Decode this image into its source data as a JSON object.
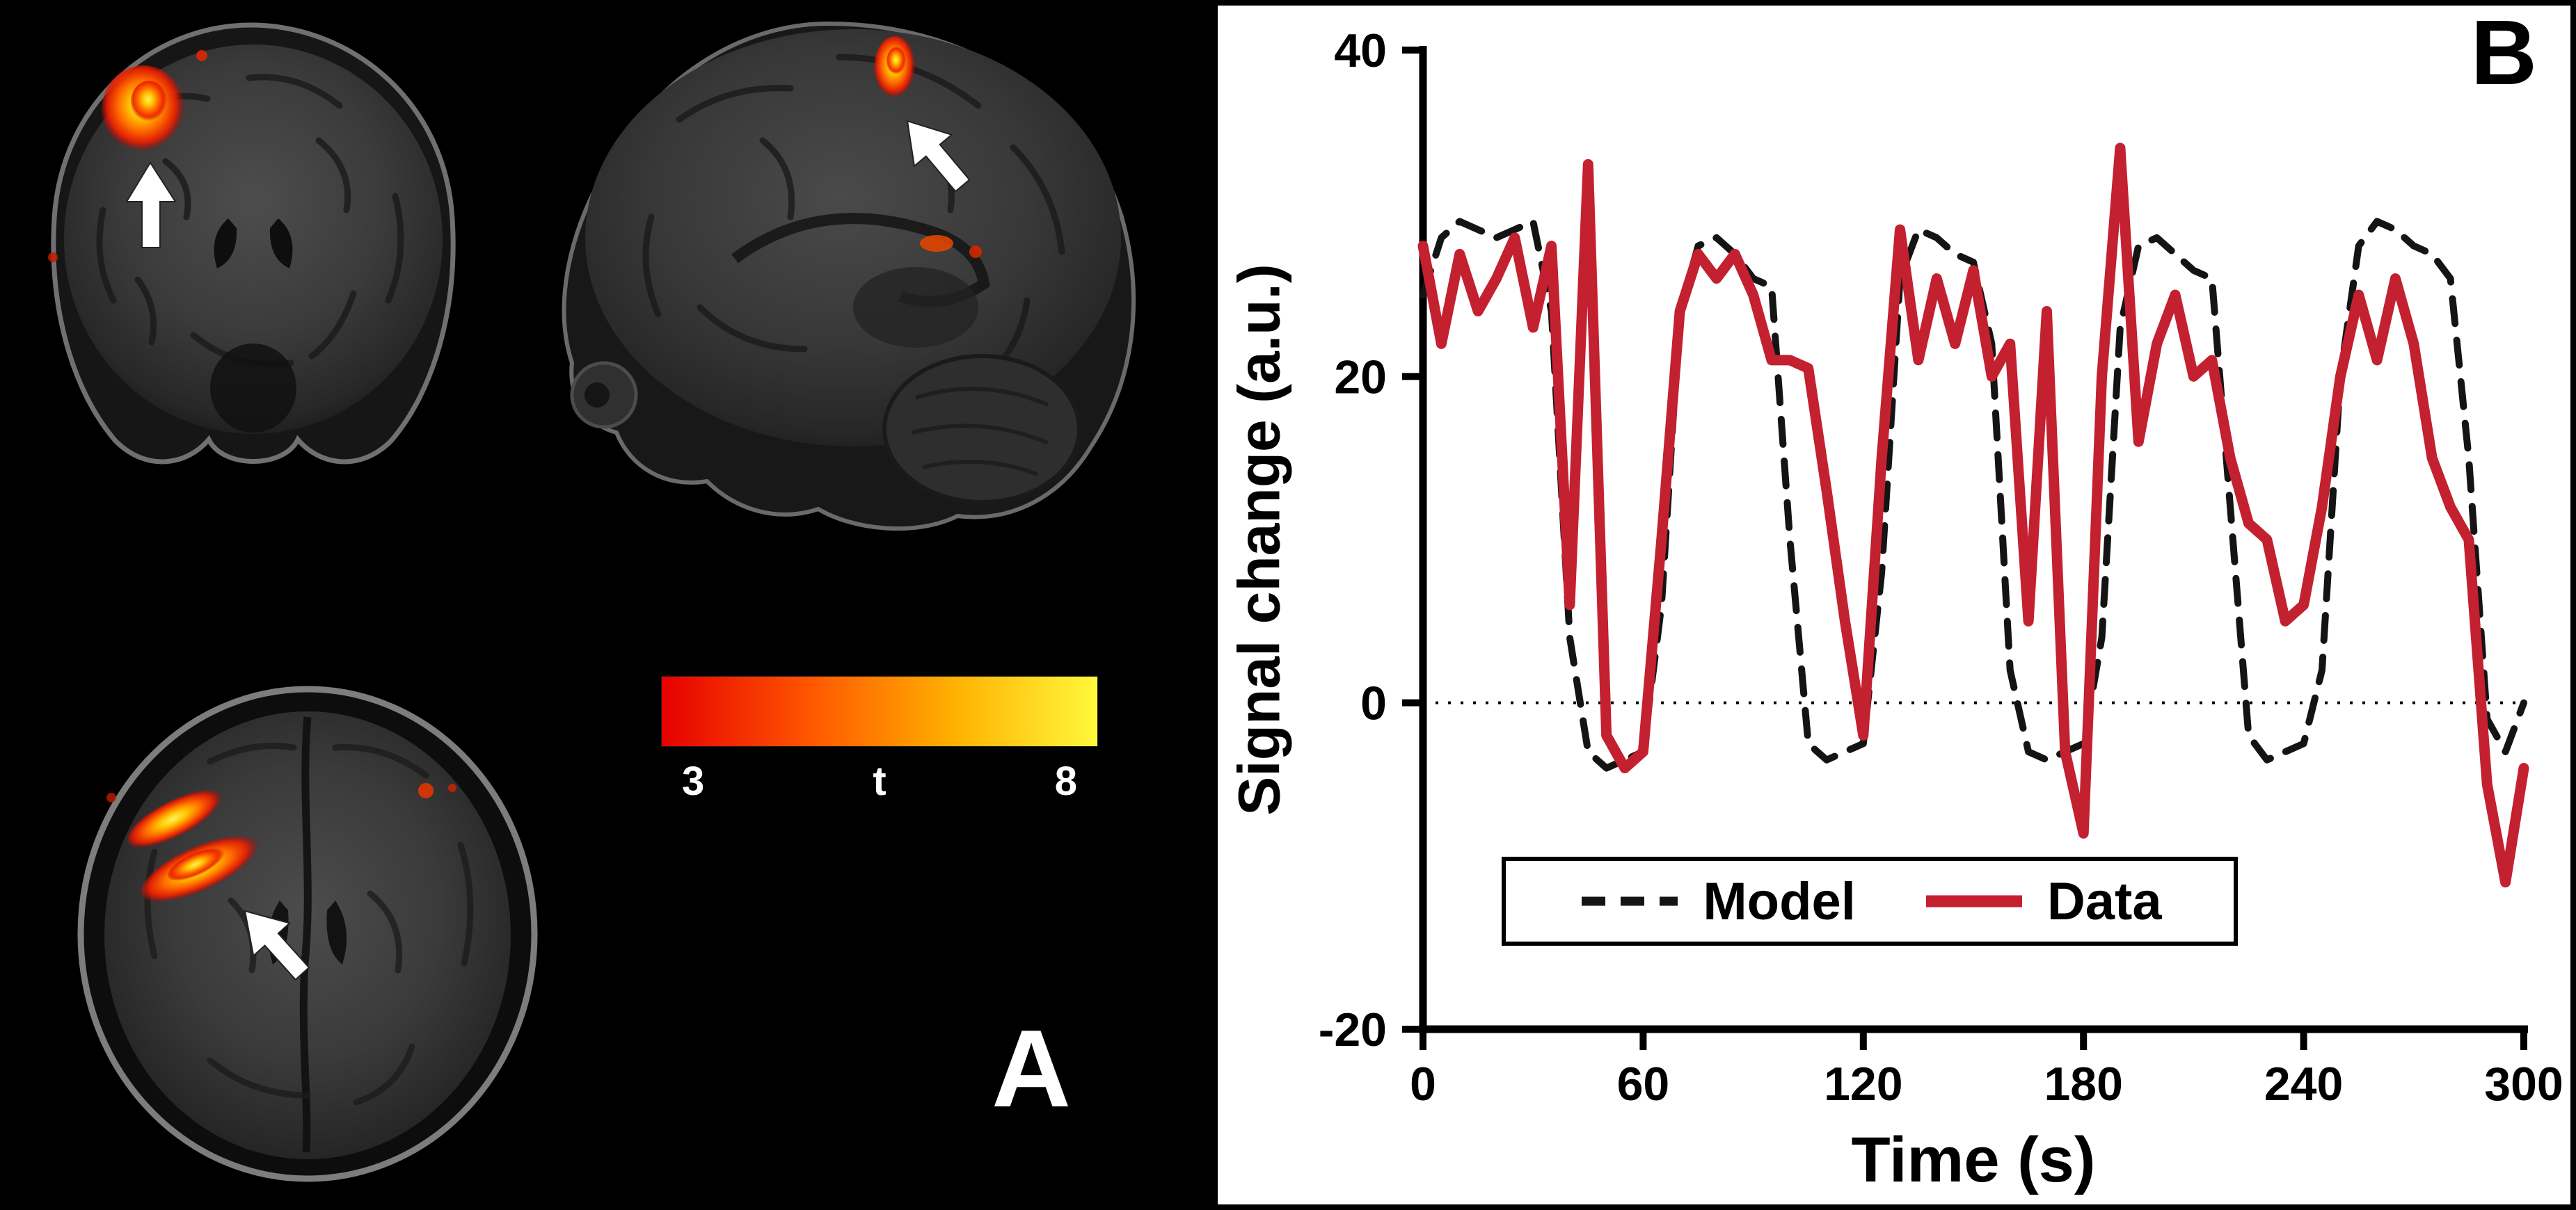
{
  "figure": {
    "background": "#000000",
    "panel_b_background": "#ffffff"
  },
  "panels": {
    "a_label": "A",
    "b_label": "B"
  },
  "panel_a": {
    "slices": [
      "coronal",
      "sagittal",
      "axial"
    ],
    "activation_description": "red-yellow fMRI activation clusters marked by white arrows",
    "colorbar": {
      "min": "3",
      "symbol": "t",
      "max": "8",
      "gradient": [
        "#e60000",
        "#ff5400",
        "#ffb000",
        "#fff83c"
      ]
    }
  },
  "chart_data": {
    "type": "line",
    "title": "",
    "xlabel": "Time (s)",
    "ylabel": "Signal change (a.u.)",
    "xlim": [
      0,
      300
    ],
    "ylim": [
      -20,
      40
    ],
    "xticks": [
      0,
      60,
      120,
      180,
      240,
      300
    ],
    "yticks": [
      -20,
      0,
      20,
      40
    ],
    "baseline": 0,
    "grid": false,
    "legend_position": "bottom-center",
    "x_start": 0,
    "x_step": 5,
    "series": [
      {
        "name": "Model",
        "color": "#141414",
        "style": "dashed",
        "values": [
          25,
          28.5,
          29.5,
          29,
          28.5,
          29,
          29.5,
          24,
          4,
          -3,
          -4,
          -3.5,
          -3,
          6,
          24,
          28,
          28.5,
          27.5,
          26,
          25.5,
          10,
          -2.5,
          -3.5,
          -3,
          -2.5,
          8,
          26,
          29,
          28.5,
          27.5,
          27,
          22,
          2,
          -3,
          -3.5,
          -3,
          -2.5,
          4,
          23,
          28,
          28.5,
          27.5,
          26.5,
          26,
          12,
          -2,
          -3.5,
          -3,
          -2.5,
          2,
          20,
          28,
          29.5,
          29,
          28,
          27.5,
          26,
          15,
          -1,
          -3,
          0
        ]
      },
      {
        "name": "Data",
        "color": "#c32030",
        "style": "solid",
        "values": [
          28,
          22,
          27.5,
          24,
          26,
          28.5,
          23,
          28,
          6,
          33,
          -2,
          -4,
          -3,
          10,
          24,
          27.5,
          26,
          27.5,
          25,
          21,
          21,
          20.5,
          13,
          5,
          -2,
          15,
          29,
          21,
          26,
          22,
          26.5,
          20,
          22,
          5,
          24,
          -3,
          -8,
          20,
          34,
          16,
          22,
          25,
          20,
          21,
          15,
          11,
          10,
          5,
          6,
          12,
          20,
          25,
          21,
          26,
          22,
          15,
          12,
          10,
          -5,
          -11,
          -4
        ]
      }
    ]
  }
}
